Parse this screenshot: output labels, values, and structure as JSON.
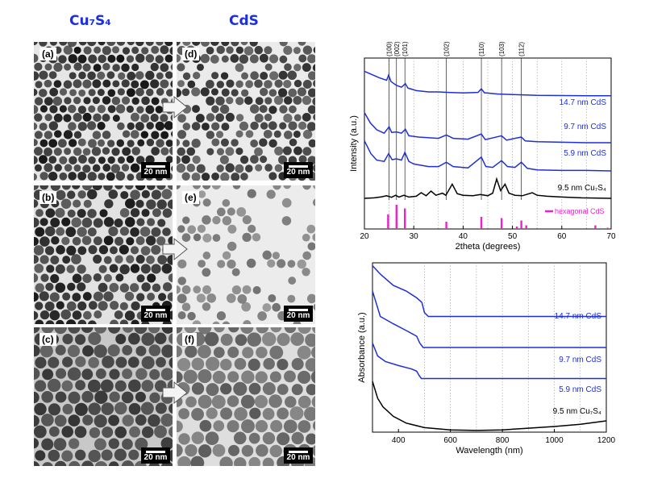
{
  "headers": {
    "left": "Cu₇S₄",
    "right": "CdS"
  },
  "panels": [
    {
      "label": "(a)",
      "scale": "20 nm",
      "tone": "#141414",
      "bg": "#e6e6e6",
      "size": 5.2,
      "density": 0.96
    },
    {
      "label": "(b)",
      "scale": "20 nm",
      "tone": "#1a1a1a",
      "bg": "#e2e2e2",
      "size": 5.8,
      "density": 0.92
    },
    {
      "label": "(c)",
      "scale": "20 nm",
      "tone": "#333333",
      "bg": "#c8c8c8",
      "size": 7.5,
      "density": 0.97
    },
    {
      "label": "(d)",
      "scale": "20 nm",
      "tone": "#2a2a2a",
      "bg": "#ebebeb",
      "size": 5.2,
      "density": 0.8
    },
    {
      "label": "(e)",
      "scale": "20 nm",
      "tone": "#707070",
      "bg": "#ececec",
      "size": 5.4,
      "density": 0.3
    },
    {
      "label": "(f)",
      "scale": "20 nm",
      "tone": "#5a5a5a",
      "bg": "#dedede",
      "size": 8.0,
      "density": 0.97
    }
  ],
  "colors": {
    "blue": "#1f2fd6",
    "black": "#000000",
    "magenta": "#ee22cc",
    "grid": "#999999"
  },
  "chart_data": [
    {
      "type": "line",
      "xlabel": "2theta (degrees)",
      "ylabel": "Intensity (a.u.)",
      "xlim": [
        20,
        70
      ],
      "xticks": [
        20,
        30,
        40,
        50,
        60,
        70
      ],
      "reference_lines": [
        25,
        26.5,
        28.2,
        36.6,
        43.7,
        47.8,
        51.8
      ],
      "reference_labels": [
        "(100)",
        "(002)",
        "(101)",
        "(102)",
        "(110)",
        "(103)",
        "(112)"
      ],
      "legend": {
        "entry": "hexagonal CdS",
        "position": "bottom-right"
      },
      "stick_pattern": {
        "name": "hexagonal CdS",
        "x": [
          24.8,
          26.5,
          28.2,
          36.6,
          43.7,
          47.8,
          50.9,
          51.8,
          52.8,
          66.8,
          69.3
        ],
        "values": [
          0.6,
          1.0,
          0.85,
          0.3,
          0.5,
          0.45,
          0.1,
          0.35,
          0.15,
          0.15,
          0.05
        ]
      },
      "series": [
        {
          "name": "14.7 nm CdS",
          "points": [
            [
              20,
              0.8
            ],
            [
              23,
              0.55
            ],
            [
              24.5,
              0.45
            ],
            [
              24.9,
              0.65
            ],
            [
              25.4,
              0.4
            ],
            [
              26.5,
              0.25
            ],
            [
              27.5,
              0.18
            ],
            [
              28.3,
              0.32
            ],
            [
              28.8,
              0.15
            ],
            [
              30.5,
              0.05
            ],
            [
              33,
              0
            ],
            [
              35,
              0
            ],
            [
              37,
              -0.02
            ],
            [
              40,
              -0.04
            ],
            [
              43,
              -0.02
            ],
            [
              43.7,
              0.12
            ],
            [
              44.3,
              -0.03
            ],
            [
              47,
              -0.08
            ],
            [
              50,
              -0.1
            ],
            [
              55,
              -0.13
            ],
            [
              60,
              -0.14
            ],
            [
              65,
              -0.15
            ],
            [
              70,
              -0.15
            ]
          ]
        },
        {
          "name": "9.7 nm CdS",
          "points": [
            [
              20,
              0.95
            ],
            [
              21.2,
              0.55
            ],
            [
              22.5,
              0.28
            ],
            [
              24,
              0.15
            ],
            [
              25,
              0.4
            ],
            [
              25.5,
              0.18
            ],
            [
              26.5,
              0.2
            ],
            [
              27.5,
              0.15
            ],
            [
              28.3,
              0.3
            ],
            [
              29,
              0.05
            ],
            [
              31,
              0
            ],
            [
              35,
              -0.05
            ],
            [
              36.6,
              0.08
            ],
            [
              38,
              -0.05
            ],
            [
              41,
              -0.08
            ],
            [
              43.7,
              0.12
            ],
            [
              44.5,
              -0.1
            ],
            [
              47.8,
              0.05
            ],
            [
              48.8,
              -0.12
            ],
            [
              51.8,
              0
            ],
            [
              52.6,
              -0.15
            ],
            [
              55,
              -0.18
            ],
            [
              60,
              -0.2
            ],
            [
              65,
              -0.22
            ],
            [
              70,
              -0.22
            ]
          ]
        },
        {
          "name": "5.9 nm CdS",
          "points": [
            [
              20,
              0.95
            ],
            [
              21.3,
              0.45
            ],
            [
              22.5,
              0.2
            ],
            [
              24,
              0.15
            ],
            [
              24.9,
              0.45
            ],
            [
              25.6,
              0.22
            ],
            [
              26.5,
              0.25
            ],
            [
              27.5,
              0.2
            ],
            [
              28.2,
              0.5
            ],
            [
              29,
              0.15
            ],
            [
              30,
              0.05
            ],
            [
              33,
              -0.05
            ],
            [
              35,
              -0.05
            ],
            [
              36.6,
              0.12
            ],
            [
              38,
              -0.05
            ],
            [
              41,
              -0.1
            ],
            [
              43.7,
              0.32
            ],
            [
              44.6,
              -0.05
            ],
            [
              46,
              -0.08
            ],
            [
              47.8,
              0.18
            ],
            [
              49,
              -0.05
            ],
            [
              50.5,
              -0.08
            ],
            [
              51.8,
              0.12
            ],
            [
              53,
              -0.12
            ],
            [
              55,
              -0.18
            ],
            [
              60,
              -0.2
            ],
            [
              65,
              -0.2
            ],
            [
              70,
              -0.22
            ]
          ]
        },
        {
          "name": "9.5 nm Cu₇S₄",
          "points": [
            [
              20,
              0
            ],
            [
              22,
              0.02
            ],
            [
              23.5,
              0.06
            ],
            [
              24.5,
              0.1
            ],
            [
              25.5,
              0.04
            ],
            [
              26.3,
              0.12
            ],
            [
              27,
              0.05
            ],
            [
              28,
              0.12
            ],
            [
              29,
              0.05
            ],
            [
              30.5,
              0.08
            ],
            [
              31.5,
              0.22
            ],
            [
              32.5,
              0.1
            ],
            [
              33.5,
              0.28
            ],
            [
              34.5,
              0.12
            ],
            [
              35.8,
              0.2
            ],
            [
              36.5,
              0.12
            ],
            [
              37.8,
              0.55
            ],
            [
              38.8,
              0.18
            ],
            [
              40,
              0.12
            ],
            [
              42,
              0.1
            ],
            [
              43.5,
              0.15
            ],
            [
              45,
              0.1
            ],
            [
              46,
              0.2
            ],
            [
              46.8,
              0.75
            ],
            [
              47.6,
              0.3
            ],
            [
              48.5,
              0.55
            ],
            [
              49.3,
              0.2
            ],
            [
              50.5,
              0.12
            ],
            [
              52,
              0.1
            ],
            [
              54,
              0.22
            ],
            [
              55,
              0.12
            ],
            [
              57,
              0.08
            ],
            [
              60,
              0.05
            ],
            [
              64,
              0.02
            ],
            [
              70,
              0
            ]
          ]
        }
      ],
      "offsets": [
        2.55,
        1.85,
        1.05,
        0
      ]
    },
    {
      "type": "line",
      "xlabel": "Wavelength (nm)",
      "ylabel": "Absorbance (a.u.)",
      "xlim": [
        300,
        1200
      ],
      "xticks": [
        400,
        600,
        800,
        1000,
        1200
      ],
      "series": [
        {
          "name": "14.7 nm CdS",
          "points": [
            [
              300,
              2.95
            ],
            [
              330,
              2.8
            ],
            [
              380,
              2.6
            ],
            [
              430,
              2.5
            ],
            [
              470,
              2.38
            ],
            [
              490,
              2.3
            ],
            [
              500,
              2.12
            ],
            [
              515,
              2.05
            ],
            [
              600,
              2.05
            ],
            [
              800,
              2.05
            ],
            [
              1000,
              2.05
            ],
            [
              1200,
              2.05
            ]
          ]
        },
        {
          "name": "9.7 nm CdS",
          "points": [
            [
              300,
              2.5
            ],
            [
              330,
              2.05
            ],
            [
              380,
              1.92
            ],
            [
              430,
              1.8
            ],
            [
              470,
              1.7
            ],
            [
              482,
              1.58
            ],
            [
              495,
              1.5
            ],
            [
              600,
              1.5
            ],
            [
              800,
              1.5
            ],
            [
              1000,
              1.5
            ],
            [
              1200,
              1.5
            ]
          ]
        },
        {
          "name": "5.9 nm CdS",
          "points": [
            [
              300,
              1.58
            ],
            [
              320,
              1.35
            ],
            [
              350,
              1.25
            ],
            [
              400,
              1.18
            ],
            [
              450,
              1.12
            ],
            [
              470,
              1.08
            ],
            [
              480,
              1.0
            ],
            [
              488,
              0.95
            ],
            [
              600,
              0.95
            ],
            [
              800,
              0.95
            ],
            [
              1000,
              0.95
            ],
            [
              1200,
              0.95
            ]
          ]
        },
        {
          "name": "9.5 nm Cu₇S₄",
          "points": [
            [
              300,
              0.9
            ],
            [
              320,
              0.6
            ],
            [
              340,
              0.45
            ],
            [
              380,
              0.28
            ],
            [
              430,
              0.16
            ],
            [
              500,
              0.08
            ],
            [
              600,
              0.04
            ],
            [
              700,
              0.03
            ],
            [
              800,
              0.04
            ],
            [
              900,
              0.07
            ],
            [
              1000,
              0.1
            ],
            [
              1100,
              0.14
            ],
            [
              1200,
              0.2
            ]
          ]
        }
      ]
    }
  ]
}
